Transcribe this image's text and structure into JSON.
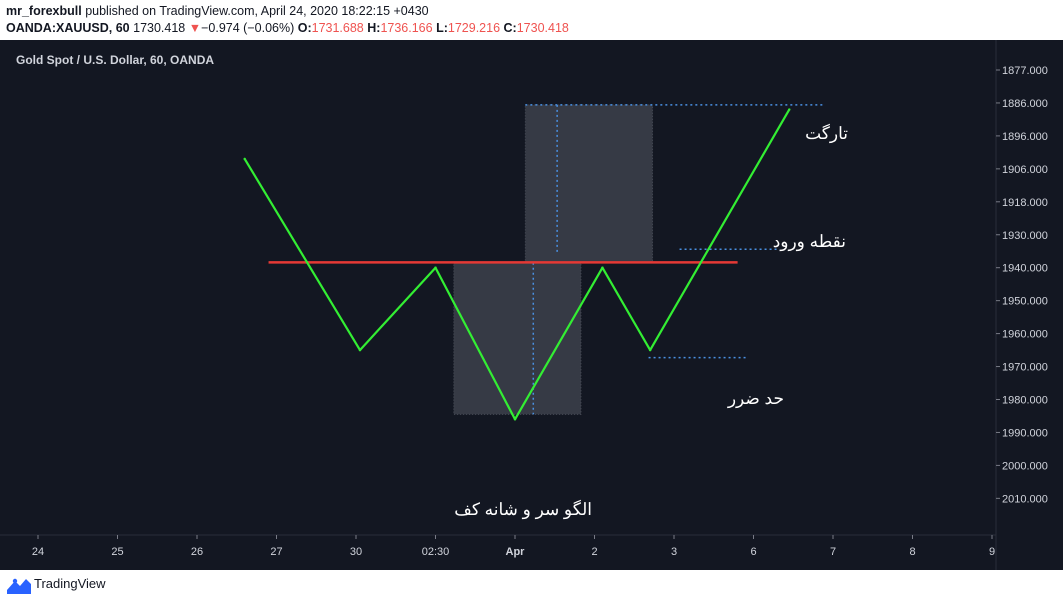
{
  "header": {
    "publisher": "mr_forexbull",
    "publish_text": " published on TradingView.com, April 24, 2020 18:22:15 +0430",
    "symbol": "OANDA:XAUUSD, 60",
    "last": "1730.418",
    "arrow": "▼",
    "change": "−0.974 (−0.06%)",
    "o_label": "O:",
    "o_value": "1731.688",
    "h_label": "H:",
    "h_value": "1736.166",
    "l_label": "L:",
    "l_value": "1729.216",
    "c_label": "C:",
    "c_value": "1730.418"
  },
  "legend_title": "Gold Spot / U.S. Dollar, 60, OANDA",
  "footer": {
    "brand": "TradingView"
  },
  "annotations": {
    "target": "تارگت",
    "entry": "نقطه ورود",
    "stop": "حد ضرر",
    "pattern": "الگو سر و شانه کف"
  },
  "colors": {
    "background": "#131722",
    "pattern_line": "#33ee33",
    "neckline": "#e53935",
    "guide": "#4a90e2",
    "box": "#363a45",
    "axis_text": "#d1d4dc"
  },
  "chart_data": {
    "type": "line",
    "title": "Gold Spot / U.S. Dollar, 60, OANDA",
    "y_axis": {
      "inverted": true,
      "ticks": [
        1877,
        1886,
        1896,
        1906,
        1918,
        1930,
        1940,
        1950,
        1960,
        1970,
        1980,
        1990,
        2000,
        2010
      ],
      "tick_labels": [
        "1877.000",
        "1886.000",
        "1896.000",
        "1906.000",
        "1918.000",
        "1930.000",
        "1940.000",
        "1950.000",
        "1960.000",
        "1970.000",
        "1980.000",
        "1990.000",
        "2000.000",
        "2010.000"
      ]
    },
    "x_axis": {
      "tick_labels": [
        "24",
        "25",
        "26",
        "27",
        "30",
        "02:30",
        "Apr",
        "2",
        "3",
        "6",
        "7",
        "8",
        "9"
      ],
      "bold": [
        "Apr"
      ]
    },
    "series": [
      {
        "points": [
          {
            "x": 2.6,
            "y": 1903
          },
          {
            "x": 4.05,
            "y": 1965
          },
          {
            "x": 5.0,
            "y": 1940
          },
          {
            "x": 6.0,
            "y": 1986
          },
          {
            "x": 7.1,
            "y": 1940
          },
          {
            "x": 7.7,
            "y": 1965
          },
          {
            "x": 9.45,
            "y": 1888
          }
        ]
      }
    ],
    "neckline": {
      "x_start": 2.9,
      "x_end": 8.8,
      "y": 1938.4
    },
    "boxes": [
      {
        "x_start": 5.23,
        "x_end": 6.83,
        "y_top": 1938.4,
        "y_bottom": 1984.5
      },
      {
        "x_start": 6.13,
        "x_end": 7.73,
        "y_top": 1886.6,
        "y_bottom": 1938.4
      }
    ],
    "guides": [
      {
        "orientation": "h",
        "x_start": 6.13,
        "x_end": 9.9,
        "y": 1886.6
      },
      {
        "orientation": "v",
        "x": 6.53,
        "y_start": 1886.6,
        "y_end": 1935.5
      },
      {
        "orientation": "v",
        "x": 6.23,
        "y_start": 1938.5,
        "y_end": 1984.5
      },
      {
        "orientation": "h",
        "x_start": 8.07,
        "x_end": 9.3,
        "y": 1934.4
      },
      {
        "orientation": "h",
        "x_start": 7.68,
        "x_end": 8.93,
        "y": 1967.3
      }
    ]
  }
}
